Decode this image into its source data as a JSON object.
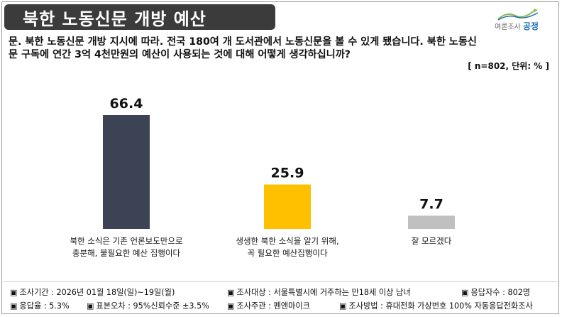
{
  "header": {
    "title": "북한 노동신문 개방 예산",
    "logo_small": "여론조사",
    "logo_brand": "공정"
  },
  "question": {
    "line1": "문. 북한 노동신문 개방 지시에 따라. 전국 180여 개 도서관에서 노동신문을 볼 수 있게 됐습니다. 북한 노동신",
    "line2": "문 구독에 연간 3억 4천만원의 예산이 사용되는 것에 대해 어떻게 생각하십니까?",
    "unit": "[ n=802, 단위: % ]"
  },
  "chart_data": {
    "type": "bar",
    "categories": [
      [
        "북한 소식은 기존 언론보도만으로",
        "충분해, 불필요한 예산 집행이다"
      ],
      [
        "생생한 북한 소식을 알기 위해,",
        "꼭 필요한 예산집행이다"
      ],
      [
        "잘 모르겠다"
      ]
    ],
    "values": [
      66.4,
      25.9,
      7.7
    ],
    "value_labels": [
      "66.4",
      "25.9",
      "7.7"
    ],
    "colors": [
      "#3b4355",
      "#ffc000",
      "#c0c0c0"
    ],
    "title": "",
    "xlabel": "",
    "ylabel": "",
    "ylim": [
      0,
      66.4
    ]
  },
  "footer": {
    "survey_period": "조사기간 : 2026년 01월 18일(일)~19일(월)",
    "survey_target": "조사대상 : 서울특별시에 거주하는 만18세 이상 남녀",
    "respondents": "응답자수 : 802명",
    "response_rate": "응답율 : 5.3%",
    "sampling_error": "표본오차 : 95%신뢰수준 ±3.5%",
    "sponsor": "조사주관 : 펜앤마이크",
    "method": "조사방법 : 휴대전화 가상번호 100% 자동응답전화조사",
    "bullet": "▣"
  }
}
